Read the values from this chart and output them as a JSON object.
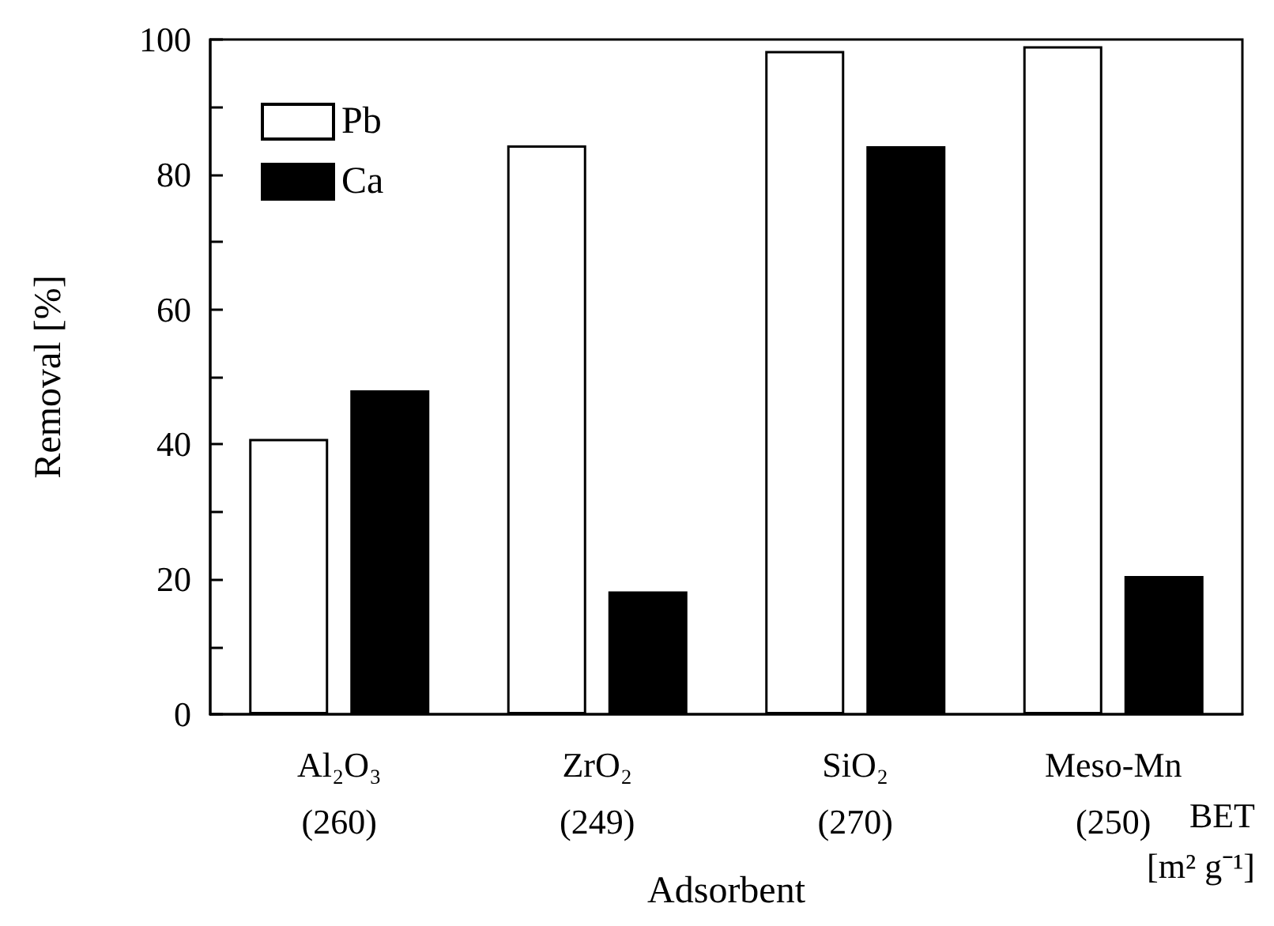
{
  "chart_data": {
    "type": "bar",
    "categories": [
      "Al₂O₃\n(260)",
      "ZrO₂\n(249)",
      "SiO₂\n(270)",
      "Meso-Mn\n(250)"
    ],
    "series": [
      {
        "name": "Pb",
        "color": "#ffffff",
        "values": [
          40.8,
          84.3,
          98.3,
          99.0
        ]
      },
      {
        "name": "Ca",
        "color": "#000000",
        "values": [
          48.0,
          18.2,
          84.2,
          20.5
        ]
      }
    ],
    "xlabel": "Adsorbent",
    "ylabel": "Removal [%]",
    "ylim": [
      0,
      100
    ],
    "yticks": [
      0,
      {
        "value": 10,
        "label": null
      },
      20,
      {
        "value": 30,
        "label": null
      },
      40,
      {
        "value": 50,
        "label": null
      },
      60,
      {
        "value": 70,
        "label": null
      },
      80,
      {
        "value": 90,
        "label": null
      },
      100
    ],
    "annotations": [
      "BET\n[m² g⁻¹]"
    ],
    "legend": "top left",
    "grid": false
  }
}
